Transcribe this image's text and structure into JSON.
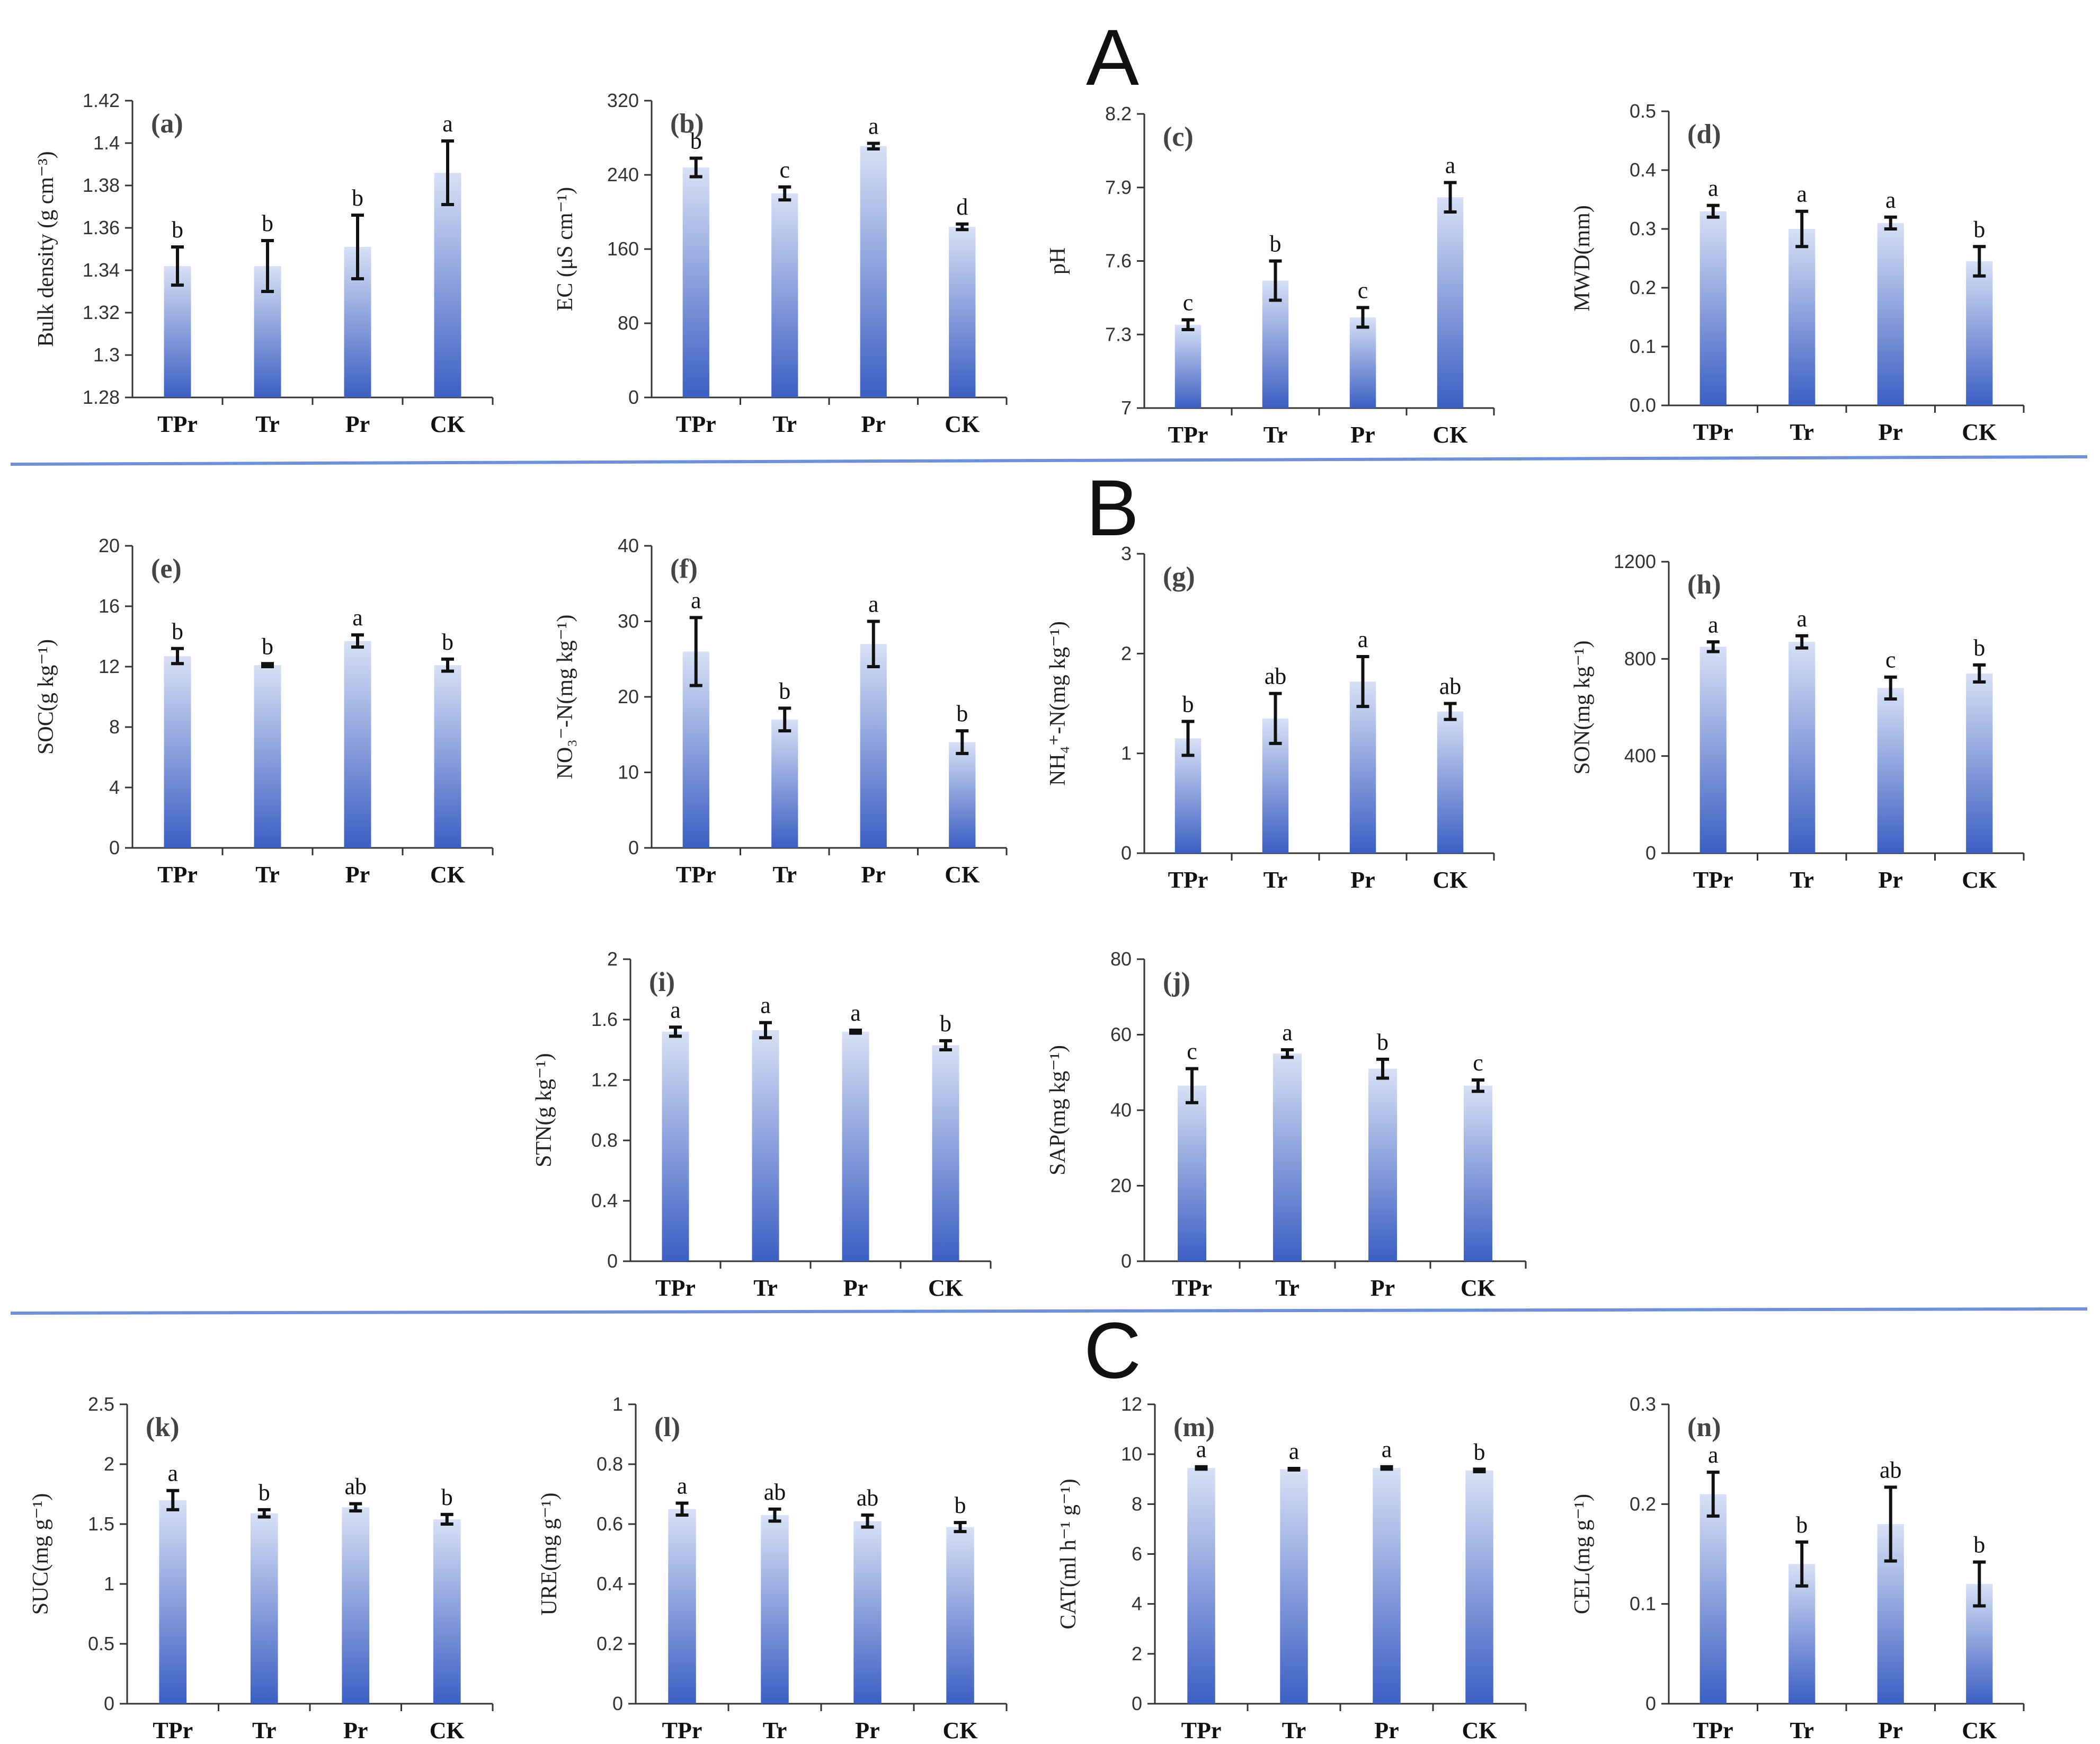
{
  "sections": [
    {
      "id": "A",
      "label": "A"
    },
    {
      "id": "B",
      "label": "B"
    },
    {
      "id": "C",
      "label": "C"
    }
  ],
  "colors": {
    "bar_top": "#d7e0f5",
    "bar_bottom": "#3b5fc3",
    "divider": "#6f8fd6"
  },
  "chart_data": [
    {
      "panel": "(a)",
      "type": "bar",
      "categories": [
        "TPr",
        "Tr",
        "Pr",
        "CK"
      ],
      "values": [
        1.342,
        1.342,
        1.351,
        1.386
      ],
      "errors": [
        0.009,
        0.012,
        0.015,
        0.015
      ],
      "letters": [
        "b",
        "b",
        "b",
        "a"
      ],
      "ylabel": "Bulk density (g cm⁻³)",
      "ylim": [
        1.28,
        1.42
      ],
      "yticks": [
        "1.28",
        "1.3",
        "1.32",
        "1.34",
        "1.36",
        "1.38",
        "1.4",
        "1.42"
      ]
    },
    {
      "panel": "(b)",
      "type": "bar",
      "categories": [
        "TPr",
        "Tr",
        "Pr",
        "CK"
      ],
      "values": [
        248,
        220,
        271,
        184
      ],
      "errors": [
        10,
        7,
        3,
        3
      ],
      "letters": [
        "b",
        "c",
        "a",
        "d"
      ],
      "ylabel": "EC (μS cm⁻¹)",
      "ylim": [
        0,
        320
      ],
      "yticks": [
        "0",
        "80",
        "160",
        "240",
        "320"
      ]
    },
    {
      "panel": "(c)",
      "type": "bar",
      "categories": [
        "TPr",
        "Tr",
        "Pr",
        "CK"
      ],
      "values": [
        7.34,
        7.52,
        7.37,
        7.86
      ],
      "errors": [
        0.02,
        0.08,
        0.04,
        0.06
      ],
      "letters": [
        "c",
        "b",
        "c",
        "a"
      ],
      "ylabel": "pH",
      "ylim": [
        7,
        8.2
      ],
      "yticks": [
        "7",
        "7.3",
        "7.6",
        "7.9",
        "8.2"
      ]
    },
    {
      "panel": "(d)",
      "type": "bar",
      "categories": [
        "TPr",
        "Tr",
        "Pr",
        "CK"
      ],
      "values": [
        0.33,
        0.3,
        0.31,
        0.245
      ],
      "errors": [
        0.01,
        0.03,
        0.01,
        0.025
      ],
      "letters": [
        "a",
        "a",
        "a",
        "b"
      ],
      "ylabel": "MWD(mm)",
      "ylim": [
        0,
        0.5
      ],
      "yticks": [
        "0.0",
        "0.1",
        "0.2",
        "0.3",
        "0.4",
        "0.5"
      ]
    },
    {
      "panel": "(e)",
      "type": "bar",
      "categories": [
        "TPr",
        "Tr",
        "Pr",
        "CK"
      ],
      "values": [
        12.7,
        12.1,
        13.7,
        12.1
      ],
      "errors": [
        0.5,
        0.1,
        0.4,
        0.4
      ],
      "letters": [
        "b",
        "b",
        "a",
        "b"
      ],
      "ylabel": "SOC(g kg⁻¹)",
      "ylim": [
        0,
        20
      ],
      "yticks": [
        "0",
        "4",
        "8",
        "12",
        "16",
        "20"
      ]
    },
    {
      "panel": "(f)",
      "type": "bar",
      "categories": [
        "TPr",
        "Tr",
        "Pr",
        "CK"
      ],
      "values": [
        26,
        17,
        27,
        14
      ],
      "errors": [
        4.5,
        1.5,
        3,
        1.5
      ],
      "letters": [
        "a",
        "b",
        "a",
        "b"
      ],
      "ylabel": "NO₃⁻-N(mg kg⁻¹)",
      "ylim": [
        0,
        40
      ],
      "yticks": [
        "0",
        "10",
        "20",
        "30",
        "40"
      ]
    },
    {
      "panel": "(g)",
      "type": "bar",
      "categories": [
        "TPr",
        "Tr",
        "Pr",
        "CK"
      ],
      "values": [
        1.15,
        1.35,
        1.72,
        1.42
      ],
      "errors": [
        0.17,
        0.25,
        0.25,
        0.08
      ],
      "letters": [
        "b",
        "ab",
        "a",
        "ab"
      ],
      "ylabel": "NH₄⁺-N(mg kg⁻¹)",
      "ylim": [
        0,
        3
      ],
      "yticks": [
        "0",
        "1",
        "2",
        "3"
      ]
    },
    {
      "panel": "(h)",
      "type": "bar",
      "categories": [
        "TPr",
        "Tr",
        "Pr",
        "CK"
      ],
      "values": [
        850,
        870,
        680,
        740
      ],
      "errors": [
        20,
        25,
        45,
        35
      ],
      "letters": [
        "a",
        "a",
        "c",
        "b"
      ],
      "ylabel": "SON(mg kg⁻¹)",
      "ylim": [
        0,
        1200
      ],
      "yticks": [
        "0",
        "400",
        "800",
        "1200"
      ]
    },
    {
      "panel": "(i)",
      "type": "bar",
      "categories": [
        "TPr",
        "Tr",
        "Pr",
        "CK"
      ],
      "values": [
        1.52,
        1.53,
        1.52,
        1.43
      ],
      "errors": [
        0.03,
        0.05,
        0.01,
        0.03
      ],
      "letters": [
        "a",
        "a",
        "a",
        "b"
      ],
      "ylabel": "STN(g kg⁻¹)",
      "ylim": [
        0,
        2
      ],
      "yticks": [
        "0",
        "0.4",
        "0.8",
        "1.2",
        "1.6",
        "2"
      ]
    },
    {
      "panel": "(j)",
      "type": "bar",
      "categories": [
        "TPr",
        "Tr",
        "Pr",
        "CK"
      ],
      "values": [
        46.5,
        55,
        51,
        46.5
      ],
      "errors": [
        4.5,
        1,
        2.5,
        1.5
      ],
      "letters": [
        "c",
        "a",
        "b",
        "c"
      ],
      "ylabel": "SAP(mg kg⁻¹)",
      "ylim": [
        0,
        80
      ],
      "yticks": [
        "0",
        "20",
        "40",
        "60",
        "80"
      ]
    },
    {
      "panel": "(k)",
      "type": "bar",
      "categories": [
        "TPr",
        "Tr",
        "Pr",
        "CK"
      ],
      "values": [
        1.7,
        1.59,
        1.64,
        1.54
      ],
      "errors": [
        0.08,
        0.03,
        0.03,
        0.04
      ],
      "letters": [
        "a",
        "b",
        "ab",
        "b"
      ],
      "ylabel": "SUC(mg g⁻¹)",
      "ylim": [
        0,
        2.5
      ],
      "yticks": [
        "0",
        "0.5",
        "1",
        "1.5",
        "2",
        "2.5"
      ]
    },
    {
      "panel": "(l)",
      "type": "bar",
      "categories": [
        "TPr",
        "Tr",
        "Pr",
        "CK"
      ],
      "values": [
        0.65,
        0.63,
        0.61,
        0.59
      ],
      "errors": [
        0.02,
        0.02,
        0.02,
        0.015
      ],
      "letters": [
        "a",
        "ab",
        "ab",
        "b"
      ],
      "ylabel": "URE(mg g⁻¹)",
      "ylim": [
        0,
        1
      ],
      "yticks": [
        "0",
        "0.2",
        "0.4",
        "0.6",
        "0.8",
        "1"
      ]
    },
    {
      "panel": "(m)",
      "type": "bar",
      "categories": [
        "TPr",
        "Tr",
        "Pr",
        "CK"
      ],
      "values": [
        9.45,
        9.4,
        9.45,
        9.35
      ],
      "errors": [
        0.05,
        0.03,
        0.05,
        0.05
      ],
      "letters": [
        "a",
        "a",
        "a",
        "b"
      ],
      "ylabel": "CAT(ml h⁻¹ g⁻¹)",
      "ylim": [
        0,
        12
      ],
      "yticks": [
        "0",
        "2",
        "4",
        "6",
        "8",
        "10",
        "12"
      ]
    },
    {
      "panel": "(n)",
      "type": "bar",
      "categories": [
        "TPr",
        "Tr",
        "Pr",
        "CK"
      ],
      "values": [
        0.21,
        0.14,
        0.18,
        0.12
      ],
      "errors": [
        0.022,
        0.022,
        0.037,
        0.022
      ],
      "letters": [
        "a",
        "b",
        "ab",
        "b"
      ],
      "ylabel": "CEL(mg g⁻¹)",
      "ylim": [
        0,
        0.3
      ],
      "yticks": [
        "0",
        "0.1",
        "0.2",
        "0.3"
      ]
    }
  ]
}
